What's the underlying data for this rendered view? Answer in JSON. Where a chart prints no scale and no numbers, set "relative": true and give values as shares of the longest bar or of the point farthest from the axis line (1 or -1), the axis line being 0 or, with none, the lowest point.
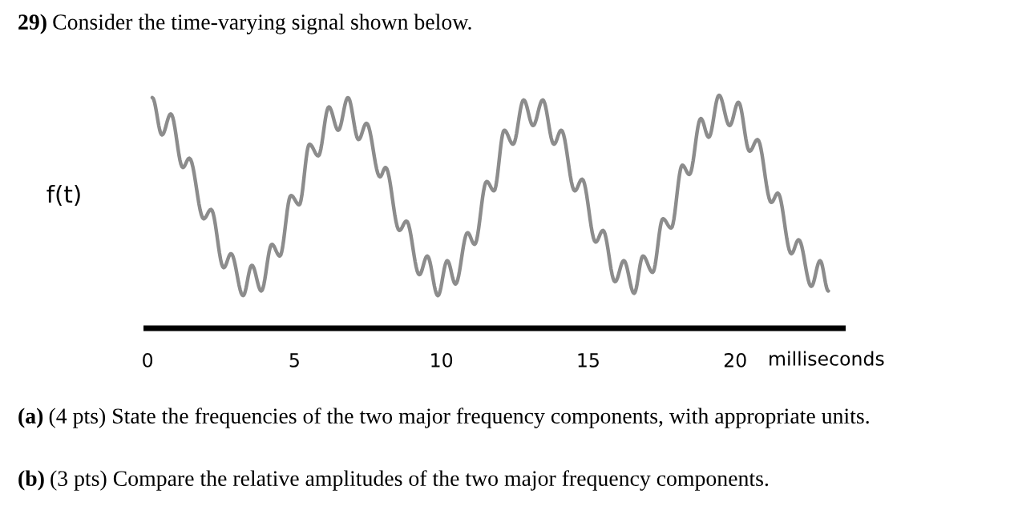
{
  "chart_data": {
    "type": "line",
    "title": "29) Consider the time-varying signal shown below.",
    "ylabel": "f(t)",
    "xlabel": "milliseconds",
    "relative": true,
    "xlim": [
      -0.14,
      23.76
    ],
    "xticks": [
      0,
      5,
      10,
      15,
      20
    ],
    "line_style": "solid",
    "series": [
      {
        "color": "#8c8c8c",
        "x": [
          0.16,
          0.49,
          0.79,
          1.2,
          1.42,
          1.91,
          2.16,
          2.59,
          2.84,
          3.25,
          3.55,
          3.87,
          4.23,
          4.5,
          4.88,
          5.16,
          5.51,
          5.81,
          6.17,
          6.49,
          6.82,
          7.18,
          7.45,
          7.91,
          8.1,
          8.57,
          8.81,
          9.25,
          9.52,
          9.88,
          10.2,
          10.48,
          10.89,
          11.13,
          11.54,
          11.79,
          12.14,
          12.44,
          12.8,
          13.12,
          13.45,
          13.83,
          14.08,
          14.54,
          14.79,
          15.25,
          15.5,
          15.91,
          16.21,
          16.56,
          16.86,
          17.19,
          17.54,
          17.82,
          18.2,
          18.44,
          18.83,
          19.1,
          19.45,
          19.81,
          20.11,
          20.49,
          20.76,
          21.23,
          21.45,
          21.91,
          22.16,
          22.59,
          22.89,
          23.17
        ],
        "values": [
          0.99,
          0.83,
          0.92,
          0.69,
          0.73,
          0.47,
          0.51,
          0.26,
          0.32,
          0.14,
          0.27,
          0.16,
          0.36,
          0.31,
          0.57,
          0.53,
          0.79,
          0.74,
          0.95,
          0.85,
          0.99,
          0.81,
          0.88,
          0.65,
          0.69,
          0.42,
          0.46,
          0.23,
          0.31,
          0.14,
          0.29,
          0.19,
          0.41,
          0.36,
          0.63,
          0.59,
          0.85,
          0.79,
          0.98,
          0.87,
          0.98,
          0.79,
          0.85,
          0.59,
          0.64,
          0.37,
          0.42,
          0.2,
          0.29,
          0.15,
          0.31,
          0.24,
          0.47,
          0.43,
          0.7,
          0.66,
          0.9,
          0.82,
          1.0,
          0.87,
          0.97,
          0.76,
          0.81,
          0.54,
          0.58,
          0.32,
          0.38,
          0.18,
          0.29,
          0.16
        ]
      }
    ],
    "annotations": [
      "(a) (4 pts) State the frequencies of the two major frequency components, with appropriate units.",
      "(b) (3 pts) Compare the relative amplitudes of the two major frequency components."
    ]
  }
}
